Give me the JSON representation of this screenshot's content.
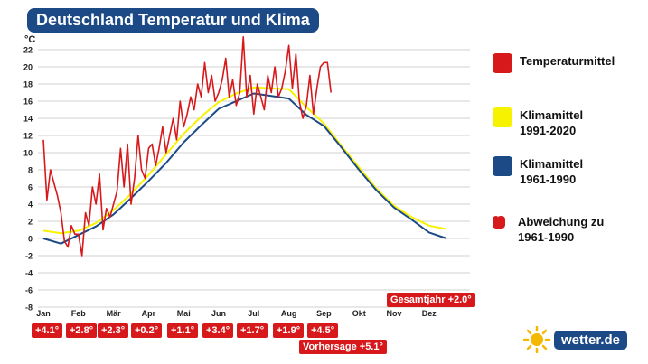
{
  "chart_data": {
    "type": "line",
    "title": "Deutschland Temperatur und Klima",
    "ylabel": "°C",
    "ylim": [
      -8,
      22
    ],
    "yticks": [
      -8,
      -6,
      -4,
      -2,
      0,
      2,
      4,
      6,
      8,
      10,
      12,
      14,
      16,
      18,
      20,
      22
    ],
    "grid": true,
    "legend_position": "right",
    "months": [
      "Jan",
      "Feb",
      "Mär",
      "Apr",
      "Mai",
      "Jun",
      "Jul",
      "Aug",
      "Sep",
      "Okt",
      "Nov",
      "Dez"
    ],
    "series": [
      {
        "name": "Temperaturmittel",
        "color": "#d7191c",
        "x": [
          0,
          0.1,
          0.2,
          0.3,
          0.4,
          0.5,
          0.6,
          0.7,
          0.8,
          0.9,
          1.0,
          1.1,
          1.2,
          1.3,
          1.4,
          1.5,
          1.6,
          1.7,
          1.8,
          1.9,
          2.0,
          2.1,
          2.2,
          2.3,
          2.4,
          2.5,
          2.6,
          2.7,
          2.8,
          2.9,
          3.0,
          3.1,
          3.2,
          3.3,
          3.4,
          3.5,
          3.6,
          3.7,
          3.8,
          3.9,
          4.0,
          4.1,
          4.2,
          4.3,
          4.4,
          4.5,
          4.6,
          4.7,
          4.8,
          4.9,
          5.0,
          5.1,
          5.2,
          5.3,
          5.4,
          5.5,
          5.6,
          5.7,
          5.8,
          5.9,
          6.0,
          6.1,
          6.2,
          6.3,
          6.4,
          6.5,
          6.6,
          6.7,
          6.8,
          6.9,
          7.0,
          7.1,
          7.2,
          7.3,
          7.4,
          7.5,
          7.6,
          7.7,
          7.8,
          7.9,
          8.0,
          8.1,
          8.2
        ],
        "values": [
          11.5,
          4.5,
          8.0,
          6.5,
          5.0,
          3.0,
          -0.3,
          -1.0,
          1.5,
          0.5,
          0.5,
          -2.0,
          3.0,
          1.5,
          6.0,
          4.0,
          7.5,
          1.0,
          3.5,
          2.5,
          4.0,
          5.5,
          10.5,
          6.0,
          11.0,
          4.0,
          7.0,
          12.0,
          8.0,
          7.0,
          10.5,
          11.0,
          8.5,
          10.5,
          13.0,
          10.0,
          12.0,
          14.0,
          11.5,
          16.0,
          13.0,
          14.5,
          16.5,
          15.0,
          18.0,
          16.5,
          20.5,
          17.0,
          19.0,
          16.0,
          17.0,
          18.5,
          21.0,
          16.5,
          18.5,
          15.5,
          17.0,
          23.5,
          16.5,
          19.0,
          14.5,
          18.0,
          16.5,
          15.0,
          19.0,
          17.0,
          20.0,
          16.5,
          17.5,
          19.5,
          22.5,
          17.5,
          21.5,
          16.0,
          14.0,
          15.5,
          19.0,
          14.5,
          17.5,
          20.0,
          20.5,
          20.5,
          17.0
        ]
      },
      {
        "name": "Klimamittel 1991-2020",
        "color": "#f7f300",
        "x": [
          0,
          0.5,
          1.0,
          1.5,
          2.0,
          2.5,
          3.0,
          3.5,
          4.0,
          4.5,
          5.0,
          5.5,
          6.0,
          6.5,
          7.0,
          7.5,
          8.0,
          8.5,
          9.0,
          9.5,
          10.0,
          10.5,
          11.0,
          11.5
        ],
        "values": [
          0.9,
          0.6,
          0.9,
          1.8,
          3.3,
          5.2,
          7.4,
          9.8,
          12.2,
          14.2,
          15.9,
          16.9,
          17.6,
          17.5,
          17.4,
          15.3,
          13.4,
          10.8,
          8.3,
          5.8,
          3.8,
          2.5,
          1.5,
          1.1
        ]
      },
      {
        "name": "Klimamittel 1961-1990",
        "color": "#1b4a86",
        "x": [
          0,
          0.5,
          1.0,
          1.5,
          2.0,
          2.5,
          3.0,
          3.5,
          4.0,
          4.5,
          5.0,
          5.5,
          6.0,
          6.5,
          7.0,
          7.5,
          8.0,
          8.5,
          9.0,
          9.5,
          10.0,
          10.5,
          11.0,
          11.5
        ],
        "values": [
          0.0,
          -0.6,
          0.4,
          1.4,
          2.8,
          4.7,
          6.7,
          8.8,
          11.2,
          13.2,
          15.1,
          16.0,
          16.9,
          16.6,
          16.3,
          14.4,
          13.1,
          10.6,
          8.0,
          5.6,
          3.6,
          2.2,
          0.7,
          0.0
        ]
      }
    ],
    "annotations": {
      "monthly_deviation": [
        "+4.1°",
        "+2.8°",
        "+2.3°",
        "+0.2°",
        "+1.1°",
        "+3.4°",
        "+1.7°",
        "+1.9°",
        "+4.5°"
      ],
      "gesamtjahr": "Gesamtjahr +2.0°",
      "vorhersage": "Vorhersage +5.1°"
    }
  },
  "legend": [
    {
      "label": "Temperaturmittel",
      "color": "#d7191c"
    },
    {
      "label": "Klimamittel\n1991-2020",
      "color": "#f7f300"
    },
    {
      "label": "Klimamittel\n1961-1990",
      "color": "#1b4a86"
    },
    {
      "label": "Abweichung zu\n1961-1990",
      "color": "#d7191c"
    }
  ],
  "brand": {
    "text": "wetter.de",
    "sun_color": "#f5b800"
  }
}
